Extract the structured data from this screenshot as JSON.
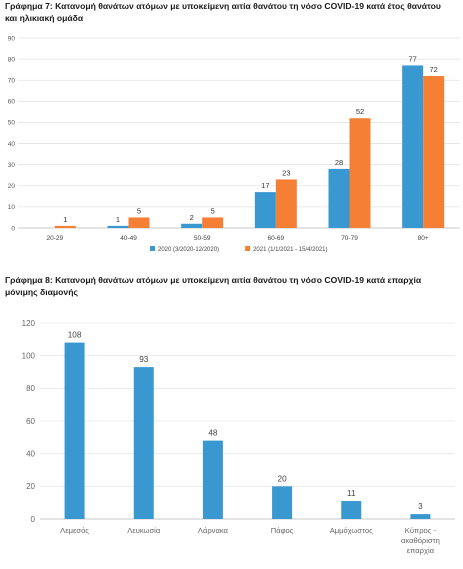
{
  "chart_data": [
    {
      "type": "bar",
      "title": "Γράφημα 7: Κατανομή θανάτων ατόμων με υποκείμενη αιτία θανάτου τη νόσο COVID-19 κατά έτος θανάτου και ηλικιακή ομάδα",
      "categories": [
        "20-29",
        "40-49",
        "50-59",
        "60-69",
        "70-79",
        "80+"
      ],
      "series": [
        {
          "name": "2020 (3/2020-12/2020)",
          "color": "#3a98d1",
          "values": [
            null,
            1,
            2,
            17,
            28,
            77
          ]
        },
        {
          "name": "2021 (1/1/2021 - 15/4/2021)",
          "color": "#f47f35",
          "values": [
            1,
            5,
            5,
            23,
            52,
            72
          ]
        }
      ],
      "ylim": [
        0,
        90
      ],
      "yticks": [
        0,
        10,
        20,
        30,
        40,
        50,
        60,
        70,
        80,
        90
      ],
      "grid": true,
      "legend": "bottom"
    },
    {
      "type": "bar",
      "title": "Γράφημα 8: Κατανομή θανάτων ατόμων με υποκείμενη αιτία θανάτου τη νόσο COVID-19 κατά επαρχία μόνιμης διαμονής",
      "categories": [
        "Λεμεσός",
        "Λευκωσία",
        "Λάρνακα",
        "Πάφος",
        "Αμμόχωστος",
        "Κύπρος - ακαθόριστη επαρχία"
      ],
      "series": [
        {
          "color": "#3a98d1",
          "values": [
            108,
            93,
            48,
            20,
            11,
            3
          ]
        }
      ],
      "ylim": [
        0,
        120
      ],
      "yticks": [
        0,
        20,
        40,
        60,
        80,
        100,
        120
      ],
      "grid": true,
      "category_lines": [
        [
          "Λεμεσός"
        ],
        [
          "Λευκωσία"
        ],
        [
          "Λάρνακα"
        ],
        [
          "Πάφος"
        ],
        [
          "Αμμόχωστος"
        ],
        [
          "Κύπρος -",
          "ακαθόριστη",
          "επαρχία"
        ]
      ]
    }
  ]
}
